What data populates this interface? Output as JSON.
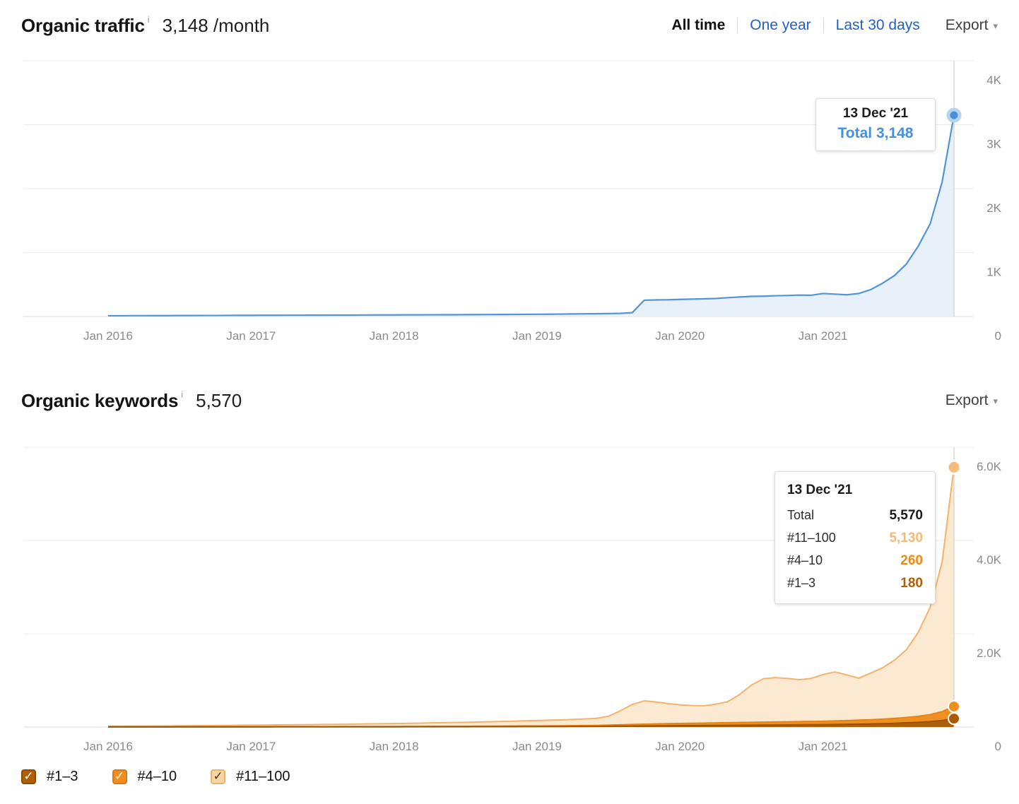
{
  "traffic_section": {
    "title": "Organic traffic",
    "info_icon": "i",
    "value": "3,148 /month",
    "tabs": [
      {
        "label": "All time",
        "active": true
      },
      {
        "label": "One year",
        "active": false
      },
      {
        "label": "Last 30 days",
        "active": false
      }
    ],
    "export_label": "Export",
    "caret_icon": "▾",
    "tooltip": {
      "date": "13 Dec '21",
      "total_label": "Total",
      "total_value": "3,148",
      "total_color": "#4a90d9"
    }
  },
  "keywords_section": {
    "title": "Organic keywords",
    "info_icon": "i",
    "value": "5,570",
    "export_label": "Export",
    "caret_icon": "▾",
    "tooltip": {
      "date": "13 Dec '21",
      "rows": [
        {
          "label": "Total",
          "value": "5,570",
          "color": "#1a1a1a"
        },
        {
          "label": "#11–100",
          "value": "5,130",
          "color": "#f5b878"
        },
        {
          "label": "#4–10",
          "value": "260",
          "color": "#ee8a10"
        },
        {
          "label": "#1–3",
          "value": "180",
          "color": "#b05e08"
        }
      ]
    },
    "legend": [
      {
        "label": "#1–3",
        "color": "#b05e08",
        "border": "#8a4a06",
        "check_color": "#ffffff",
        "check_icon": "✓"
      },
      {
        "label": "#4–10",
        "color": "#f18c1d",
        "border": "#d97a10",
        "check_color": "#ffffff",
        "check_icon": "✓"
      },
      {
        "label": "#11–100",
        "color": "#f8d4a4",
        "border": "#e9b36c",
        "check_color": "#4a3012",
        "check_icon": "✓"
      }
    ]
  },
  "chart_data": [
    {
      "type": "area",
      "name": "organic-traffic",
      "title": "Organic traffic",
      "x_start": "2016-01",
      "x_interval": "month",
      "x_ticks": [
        {
          "month_index": 0,
          "label": "Jan 2016"
        },
        {
          "month_index": 12,
          "label": "Jan 2017"
        },
        {
          "month_index": 24,
          "label": "Jan 2018"
        },
        {
          "month_index": 36,
          "label": "Jan 2019"
        },
        {
          "month_index": 48,
          "label": "Jan 2020"
        },
        {
          "month_index": 60,
          "label": "Jan 2021"
        }
      ],
      "y_ticks": [
        {
          "value": 4000,
          "label": "4K"
        },
        {
          "value": 3000,
          "label": "3K"
        },
        {
          "value": 2000,
          "label": "2K"
        },
        {
          "value": 1000,
          "label": "1K"
        },
        {
          "value": 0,
          "label": "0"
        }
      ],
      "ylim": [
        0,
        4000
      ],
      "grid": true,
      "legend_position": "none",
      "series": [
        {
          "name": "Total",
          "color": "#5393d7",
          "fill": "#e8f1fa",
          "marker": "#4a90d9",
          "marker_ring": "#b6d3f0",
          "values": [
            12,
            12,
            13,
            13,
            14,
            14,
            15,
            15,
            16,
            16,
            17,
            18,
            18,
            19,
            19,
            20,
            20,
            21,
            21,
            22,
            22,
            23,
            24,
            25,
            25,
            26,
            26,
            27,
            28,
            28,
            29,
            30,
            31,
            32,
            33,
            34,
            35,
            36,
            38,
            40,
            42,
            44,
            46,
            50,
            60,
            255,
            260,
            262,
            268,
            272,
            276,
            282,
            295,
            305,
            315,
            318,
            325,
            328,
            335,
            332,
            360,
            350,
            340,
            360,
            420,
            520,
            640,
            820,
            1100,
            1450,
            2100,
            3148
          ]
        }
      ],
      "highlight": {
        "date": "13 Dec '21",
        "total": 3148
      }
    },
    {
      "type": "stacked-area",
      "name": "organic-keywords",
      "title": "Organic keywords",
      "x_start": "2016-01",
      "x_interval": "month",
      "x_ticks": [
        {
          "month_index": 0,
          "label": "Jan 2016"
        },
        {
          "month_index": 12,
          "label": "Jan 2017"
        },
        {
          "month_index": 24,
          "label": "Jan 2018"
        },
        {
          "month_index": 36,
          "label": "Jan 2019"
        },
        {
          "month_index": 48,
          "label": "Jan 2020"
        },
        {
          "month_index": 60,
          "label": "Jan 2021"
        }
      ],
      "y_ticks": [
        {
          "value": 6000,
          "label": "6.0K"
        },
        {
          "value": 4000,
          "label": "4.0K"
        },
        {
          "value": 2000,
          "label": "2.0K"
        },
        {
          "value": 0,
          "label": "0"
        }
      ],
      "ylim": [
        0,
        6000
      ],
      "grid": true,
      "stack_order": "bottom-to-top",
      "series": [
        {
          "name": "#1–3",
          "color": "#9a5303",
          "fill": "#ad5e09",
          "marker": "#a95c04",
          "values": [
            1,
            1,
            1,
            1,
            1,
            1,
            2,
            2,
            2,
            2,
            2,
            2,
            2,
            2,
            3,
            3,
            3,
            3,
            3,
            3,
            4,
            4,
            4,
            4,
            4,
            5,
            5,
            5,
            6,
            6,
            6,
            7,
            7,
            8,
            8,
            9,
            9,
            10,
            10,
            11,
            12,
            13,
            15,
            18,
            20,
            22,
            24,
            26,
            28,
            30,
            32,
            34,
            36,
            38,
            40,
            42,
            44,
            46,
            48,
            50,
            52,
            55,
            58,
            62,
            66,
            72,
            80,
            90,
            100,
            115,
            140,
            180
          ]
        },
        {
          "name": "#4–10",
          "color": "#e78312",
          "fill": "#f0911f",
          "marker": "#ef8e1c",
          "values": [
            2,
            2,
            2,
            2,
            2,
            2,
            3,
            3,
            3,
            3,
            3,
            3,
            3,
            3,
            4,
            4,
            4,
            4,
            5,
            5,
            5,
            5,
            6,
            6,
            6,
            7,
            7,
            8,
            8,
            9,
            9,
            10,
            10,
            11,
            12,
            13,
            14,
            15,
            16,
            18,
            20,
            22,
            26,
            30,
            34,
            38,
            42,
            46,
            48,
            50,
            52,
            54,
            56,
            58,
            60,
            62,
            64,
            66,
            68,
            70,
            72,
            76,
            80,
            85,
            90,
            96,
            104,
            115,
            130,
            150,
            190,
            260
          ]
        },
        {
          "name": "#11–100",
          "color": "#f2b36b",
          "fill": "#fce9d2",
          "marker": "#f5bc7c",
          "values": [
            15,
            16,
            17,
            18,
            19,
            20,
            22,
            24,
            26,
            28,
            30,
            32,
            34,
            36,
            38,
            40,
            42,
            44,
            46,
            48,
            50,
            53,
            56,
            60,
            63,
            66,
            70,
            74,
            78,
            82,
            86,
            90,
            95,
            100,
            105,
            110,
            115,
            120,
            126,
            132,
            140,
            150,
            190,
            300,
            430,
            500,
            470,
            430,
            400,
            380,
            370,
            400,
            450,
            600,
            800,
            930,
            950,
            930,
            900,
            920,
            1000,
            1050,
            980,
            900,
            1000,
            1100,
            1250,
            1450,
            1800,
            2300,
            3200,
            5130
          ]
        }
      ],
      "highlight": {
        "date": "13 Dec '21",
        "total": 5570,
        "rank_11_100": 5130,
        "rank_4_10": 260,
        "rank_1_3": 180
      }
    }
  ]
}
